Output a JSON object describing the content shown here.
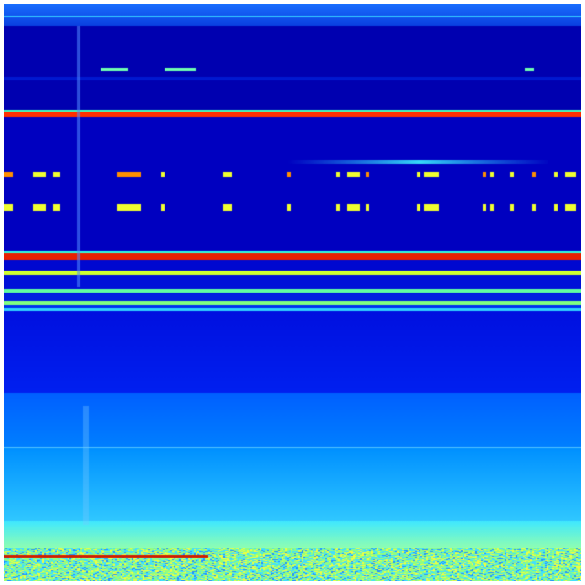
{
  "image": {
    "kind": "heatmap",
    "colormap": "jet",
    "colors": {
      "dark_blue": "#0000b4",
      "blue": "#0018e8",
      "light_blue": "#0070ff",
      "sky": "#20b0ff",
      "cyan": "#40f0ff",
      "green": "#80ff80",
      "yellow": "#f0ff20",
      "orange": "#ff9000",
      "red": "#e01000"
    }
  }
}
